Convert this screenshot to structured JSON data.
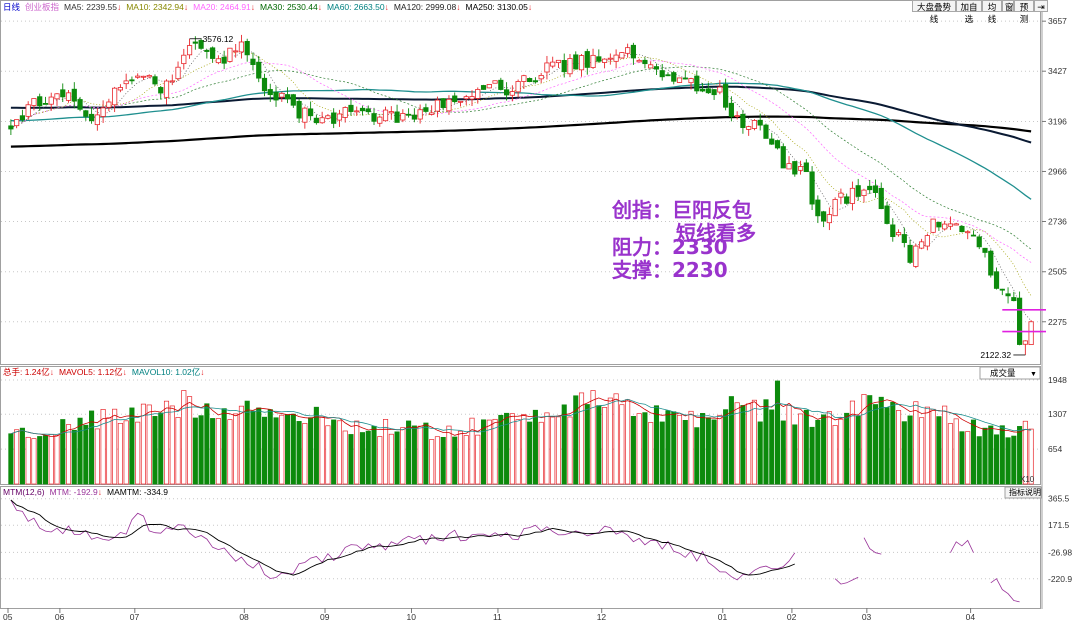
{
  "toolbar": {
    "buttons": [
      "大盘叠势线",
      "加自选",
      "均线",
      "窗",
      "预测"
    ],
    "close_icon": "exit-icon"
  },
  "price_panel": {
    "legend": [
      {
        "label": "日线",
        "color": "#0000cc"
      },
      {
        "label": "创业板指",
        "color": "#cc66cc"
      },
      {
        "label": "MA5: 2239.55",
        "color": "#333333"
      },
      {
        "label": "MA10: 2342.94",
        "color": "#888800"
      },
      {
        "label": "MA20: 2464.91",
        "color": "#ff66ff"
      },
      {
        "label": "MA30: 2530.44",
        "color": "#006600"
      },
      {
        "label": "MA60: 2663.50",
        "color": "#008080"
      },
      {
        "label": "MA120: 2999.08",
        "color": "#222222"
      },
      {
        "label": "MA250: 3130.05",
        "color": "#000000"
      }
    ],
    "y_ticks": [
      "3657",
      "3427",
      "3196",
      "2966",
      "2736",
      "2505",
      "2275"
    ],
    "high_label": "3576.12",
    "low_label": "2122.32"
  },
  "annotation": {
    "line1": "创指：巨阳反包",
    "line2": "短线看多",
    "line3": "阻力：2330",
    "line4": "支撑：2230",
    "color": "#9933cc"
  },
  "volume_panel": {
    "legend": [
      {
        "label": "总手: 1.24亿",
        "color": "#cc0000"
      },
      {
        "label": "MAVOL5: 1.12亿",
        "color": "#cc0000"
      },
      {
        "label": "MAVOL10: 1.02亿",
        "color": "#008080"
      }
    ],
    "indicator_select": "成交量",
    "y_ticks": [
      "1948",
      "1307",
      "654"
    ],
    "unit_label": "X10"
  },
  "mtm_panel": {
    "legend": [
      {
        "label": "MTM(12,6)",
        "color": "#660066"
      },
      {
        "label": "MTM: -192.9",
        "color": "#993399"
      },
      {
        "label": "MAMTM: -334.9",
        "color": "#000000"
      }
    ],
    "help_button": "指标说明",
    "y_ticks": [
      "365.5",
      "171.5",
      "-26.98",
      "-220.9"
    ]
  },
  "x_axis": {
    "labels": [
      "05",
      "06",
      "07",
      "08",
      "09",
      "10",
      "11",
      "12",
      "01",
      "02",
      "03",
      "04"
    ]
  },
  "chart_data": {
    "type": "candlestick",
    "title": "创业板指",
    "y_range": [
      2122.32,
      3657
    ],
    "volume_range": [
      0,
      1948
    ],
    "mtm_range": [
      -420,
      400
    ],
    "months": [
      "05",
      "06",
      "07",
      "08",
      "09",
      "10",
      "11",
      "12",
      "01",
      "02",
      "03",
      "04"
    ],
    "month_start_index": [
      0,
      9,
      22,
      41,
      55,
      70,
      85,
      103,
      124,
      136,
      149,
      167
    ],
    "last_values": {
      "MA5": 2239.55,
      "MA10": 2342.94,
      "MA20": 2464.91,
      "MA30": 2530.44,
      "MA60": 2663.5,
      "MA120": 2999.08,
      "MA250": 3130.05
    },
    "last_volume": 1.24,
    "mavol5": 1.12,
    "mavol10": 1.02,
    "mtm": -192.9,
    "mamtm": -334.9,
    "extremes": {
      "high": 3576.12,
      "low": 2122.32
    },
    "annotations": {
      "resistance": 2330,
      "support": 2230
    },
    "close_anchors": [
      [
        0,
        3190
      ],
      [
        5,
        3290
      ],
      [
        10,
        3300
      ],
      [
        13,
        3200
      ],
      [
        18,
        3330
      ],
      [
        22,
        3420
      ],
      [
        26,
        3330
      ],
      [
        30,
        3500
      ],
      [
        33,
        3560
      ],
      [
        36,
        3450
      ],
      [
        40,
        3560
      ],
      [
        44,
        3320
      ],
      [
        48,
        3290
      ],
      [
        52,
        3200
      ],
      [
        55,
        3190
      ],
      [
        58,
        3250
      ],
      [
        62,
        3220
      ],
      [
        66,
        3230
      ],
      [
        70,
        3200
      ],
      [
        74,
        3280
      ],
      [
        78,
        3320
      ],
      [
        82,
        3360
      ],
      [
        86,
        3340
      ],
      [
        90,
        3400
      ],
      [
        94,
        3440
      ],
      [
        98,
        3460
      ],
      [
        102,
        3480
      ],
      [
        104,
        3520
      ],
      [
        108,
        3500
      ],
      [
        112,
        3450
      ],
      [
        116,
        3380
      ],
      [
        120,
        3350
      ],
      [
        123,
        3330
      ],
      [
        126,
        3190
      ],
      [
        130,
        3170
      ],
      [
        134,
        3000
      ],
      [
        138,
        2960
      ],
      [
        140,
        2740
      ],
      [
        144,
        2840
      ],
      [
        148,
        2870
      ],
      [
        150,
        2880
      ],
      [
        152,
        2730
      ],
      [
        156,
        2580
      ],
      [
        160,
        2730
      ],
      [
        164,
        2700
      ],
      [
        168,
        2620
      ],
      [
        171,
        2460
      ],
      [
        174,
        2380
      ],
      [
        175,
        2200
      ],
      [
        176,
        2168
      ],
      [
        177,
        2275
      ]
    ],
    "volume_anchors": [
      [
        0,
        860
      ],
      [
        10,
        1120
      ],
      [
        20,
        1250
      ],
      [
        30,
        1500
      ],
      [
        40,
        1420
      ],
      [
        50,
        1280
      ],
      [
        60,
        1090
      ],
      [
        70,
        1000
      ],
      [
        80,
        1050
      ],
      [
        90,
        1350
      ],
      [
        100,
        1500
      ],
      [
        110,
        1380
      ],
      [
        120,
        1200
      ],
      [
        126,
        1560
      ],
      [
        130,
        1380
      ],
      [
        140,
        1200
      ],
      [
        148,
        1520
      ],
      [
        156,
        1380
      ],
      [
        166,
        1100
      ],
      [
        174,
        990
      ],
      [
        177,
        1240
      ]
    ],
    "mtm_anchors": [
      [
        0,
        320
      ],
      [
        3,
        220
      ],
      [
        7,
        120
      ],
      [
        12,
        130
      ],
      [
        18,
        60
      ],
      [
        22,
        230
      ],
      [
        26,
        90
      ],
      [
        30,
        160
      ],
      [
        34,
        80
      ],
      [
        38,
        -30
      ],
      [
        42,
        -120
      ],
      [
        46,
        -210
      ],
      [
        50,
        -150
      ],
      [
        54,
        -70
      ],
      [
        58,
        -20
      ],
      [
        62,
        40
      ],
      [
        66,
        10
      ],
      [
        70,
        60
      ],
      [
        74,
        80
      ],
      [
        80,
        110
      ],
      [
        86,
        90
      ],
      [
        92,
        150
      ],
      [
        98,
        130
      ],
      [
        104,
        120
      ],
      [
        110,
        60
      ],
      [
        116,
        -10
      ],
      [
        120,
        -60
      ],
      [
        124,
        -160
      ],
      [
        128,
        -210
      ],
      [
        132,
        -120
      ],
      [
        136,
        -70
      ]
    ]
  }
}
